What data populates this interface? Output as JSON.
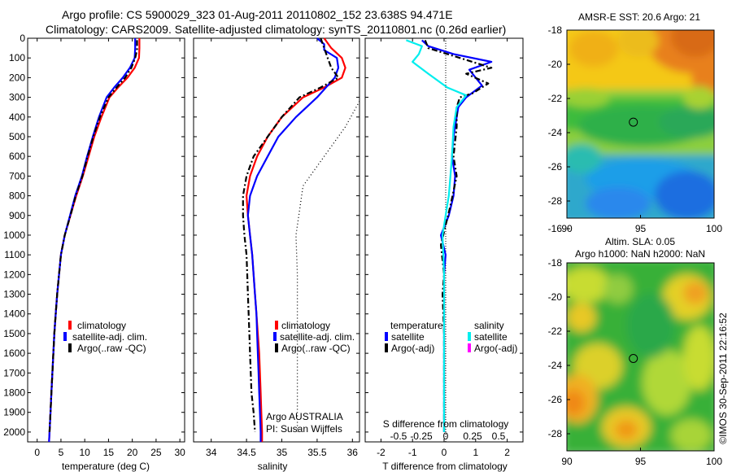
{
  "header": {
    "line1": "Argo profile: CS 5900029_323 01-Aug-2011 20110802_152 23.638S 94.471E",
    "line2": "Climatology: CARS2009. Satellite-adjusted climatology: synTS_20110801.nc (0.26d earlier)"
  },
  "chart_data": [
    {
      "type": "line",
      "xlabel": "temperature (deg C)",
      "ylabel": "",
      "xlim": [
        -2,
        31
      ],
      "ylim": [
        0,
        2050
      ],
      "x_ticks": [
        0,
        5,
        10,
        15,
        20,
        25,
        30
      ],
      "y_ticks": [
        0,
        100,
        200,
        300,
        400,
        500,
        600,
        700,
        800,
        900,
        1000,
        1100,
        1200,
        1300,
        1400,
        1500,
        1600,
        1700,
        1800,
        1900,
        2000
      ],
      "y_reversed": true,
      "legend": [
        "climatology",
        "satellite-adj. clim.",
        "Argo(..raw -QC)"
      ],
      "series": [
        {
          "name": "climatology",
          "color": "#ff0000",
          "style": "solid",
          "points": [
            [
              21.5,
              0
            ],
            [
              21.5,
              50
            ],
            [
              21.4,
              100
            ],
            [
              20.5,
              150
            ],
            [
              19,
              200
            ],
            [
              17,
              250
            ],
            [
              15.2,
              300
            ],
            [
              13.5,
              400
            ],
            [
              12,
              500
            ],
            [
              10.8,
              600
            ],
            [
              9.6,
              700
            ],
            [
              8.2,
              800
            ],
            [
              7,
              900
            ],
            [
              5.8,
              1000
            ],
            [
              5,
              1100
            ],
            [
              4.6,
              1200
            ],
            [
              4.2,
              1300
            ],
            [
              3.9,
              1400
            ],
            [
              3.6,
              1500
            ],
            [
              3.4,
              1600
            ],
            [
              3.2,
              1700
            ],
            [
              3,
              1800
            ],
            [
              2.8,
              1900
            ],
            [
              2.6,
              2000
            ],
            [
              2.5,
              2050
            ]
          ]
        },
        {
          "name": "satellite-adj. clim.",
          "color": "#0000ff",
          "style": "solid",
          "points": [
            [
              20.6,
              0
            ],
            [
              20.6,
              50
            ],
            [
              20.5,
              100
            ],
            [
              19.5,
              150
            ],
            [
              18,
              200
            ],
            [
              16.2,
              250
            ],
            [
              14.6,
              300
            ],
            [
              13,
              400
            ],
            [
              11.7,
              500
            ],
            [
              10.5,
              600
            ],
            [
              9.4,
              700
            ],
            [
              8,
              800
            ],
            [
              6.9,
              900
            ],
            [
              5.8,
              1000
            ],
            [
              5,
              1100
            ],
            [
              4.6,
              1200
            ],
            [
              4.2,
              1300
            ],
            [
              3.9,
              1400
            ],
            [
              3.6,
              1500
            ],
            [
              3.4,
              1600
            ],
            [
              3.2,
              1700
            ],
            [
              3,
              1800
            ],
            [
              2.8,
              1900
            ],
            [
              2.6,
              2000
            ],
            [
              2.5,
              2050
            ]
          ]
        },
        {
          "name": "Argo(..raw -QC)",
          "color": "#000000",
          "style": "dashdot",
          "points": [
            [
              21,
              10
            ],
            [
              21,
              60
            ],
            [
              20.6,
              100
            ],
            [
              19.8,
              150
            ],
            [
              18.5,
              200
            ],
            [
              16.7,
              250
            ],
            [
              15,
              300
            ],
            [
              13.2,
              400
            ],
            [
              11.8,
              500
            ],
            [
              10.6,
              600
            ],
            [
              9.5,
              700
            ],
            [
              8.1,
              800
            ],
            [
              7,
              900
            ],
            [
              5.8,
              1000
            ],
            [
              5,
              1100
            ],
            [
              4.6,
              1200
            ],
            [
              4.2,
              1300
            ],
            [
              3.9,
              1400
            ],
            [
              3.6,
              1500
            ],
            [
              3.4,
              1600
            ],
            [
              3.2,
              1700
            ],
            [
              3,
              1800
            ],
            [
              2.8,
              1900
            ],
            [
              2.6,
              2000
            ]
          ]
        }
      ]
    },
    {
      "type": "line",
      "xlabel": "salinity",
      "xlim": [
        33.75,
        36.1
      ],
      "ylim": [
        0,
        2050
      ],
      "x_ticks": [
        34,
        34.5,
        35,
        35.5,
        36
      ],
      "y_reversed": true,
      "legend": [
        "climatology",
        "satellite-adj. clim.",
        "Argo(..raw -QC)"
      ],
      "annotation": [
        "Argo AUSTRALIA",
        "PI: Susan Wijffels"
      ],
      "series": [
        {
          "name": "climatology",
          "color": "#ff0000",
          "style": "solid",
          "points": [
            [
              35.6,
              0
            ],
            [
              35.7,
              50
            ],
            [
              35.85,
              100
            ],
            [
              35.9,
              150
            ],
            [
              35.85,
              200
            ],
            [
              35.6,
              250
            ],
            [
              35.3,
              300
            ],
            [
              35,
              400
            ],
            [
              34.8,
              500
            ],
            [
              34.65,
              600
            ],
            [
              34.55,
              700
            ],
            [
              34.5,
              800
            ],
            [
              34.52,
              900
            ],
            [
              34.55,
              1000
            ],
            [
              34.58,
              1100
            ],
            [
              34.6,
              1200
            ],
            [
              34.62,
              1300
            ],
            [
              34.64,
              1400
            ],
            [
              34.66,
              1500
            ],
            [
              34.68,
              1600
            ],
            [
              34.69,
              1700
            ],
            [
              34.7,
              1800
            ],
            [
              34.71,
              1900
            ],
            [
              34.72,
              2000
            ],
            [
              34.72,
              2050
            ]
          ]
        },
        {
          "name": "satellite-adj. clim.",
          "color": "#0000ff",
          "style": "solid",
          "points": [
            [
              35.5,
              0
            ],
            [
              35.6,
              30
            ],
            [
              35.6,
              60
            ],
            [
              35.78,
              100
            ],
            [
              35.8,
              150
            ],
            [
              35.75,
              200
            ],
            [
              35.5,
              300
            ],
            [
              35.2,
              400
            ],
            [
              34.95,
              500
            ],
            [
              34.8,
              600
            ],
            [
              34.65,
              700
            ],
            [
              34.55,
              800
            ],
            [
              34.52,
              900
            ],
            [
              34.55,
              1000
            ],
            [
              34.58,
              1100
            ],
            [
              34.6,
              1200
            ],
            [
              34.62,
              1300
            ],
            [
              34.64,
              1400
            ],
            [
              34.65,
              1500
            ],
            [
              34.66,
              1600
            ],
            [
              34.67,
              1700
            ],
            [
              34.68,
              1800
            ],
            [
              34.69,
              1900
            ],
            [
              34.7,
              2000
            ],
            [
              34.7,
              2050
            ]
          ]
        },
        {
          "name": "Argo(..raw -QC)",
          "color": "#000000",
          "style": "dashdot",
          "points": [
            [
              35.55,
              0
            ],
            [
              35.6,
              50
            ],
            [
              35.65,
              100
            ],
            [
              35.7,
              150
            ],
            [
              35.8,
              200
            ],
            [
              35.55,
              250
            ],
            [
              35.25,
              300
            ],
            [
              35,
              400
            ],
            [
              34.8,
              500
            ],
            [
              34.6,
              600
            ],
            [
              34.5,
              700
            ],
            [
              34.45,
              800
            ],
            [
              34.45,
              900
            ],
            [
              34.47,
              1000
            ],
            [
              34.5,
              1100
            ],
            [
              34.51,
              1200
            ],
            [
              34.52,
              1300
            ],
            [
              34.53,
              1400
            ],
            [
              34.54,
              1500
            ],
            [
              34.55,
              1600
            ],
            [
              34.56,
              1700
            ],
            [
              34.57,
              1800
            ],
            [
              34.6,
              1900
            ],
            [
              34.62,
              2000
            ]
          ]
        },
        {
          "name": "",
          "color": "#000000",
          "style": "dotted",
          "points": [
            [
              36.1,
              320
            ],
            [
              35.9,
              450
            ],
            [
              35.5,
              650
            ],
            [
              35.3,
              750
            ],
            [
              35.2,
              1000
            ],
            [
              35.22,
              1200
            ],
            [
              35.22,
              1500
            ],
            [
              35.22,
              1800
            ],
            [
              35.22,
              2000
            ]
          ]
        }
      ]
    },
    {
      "type": "line",
      "xlabel": "T difference from climatology",
      "top_label": "S difference from climatology",
      "xlim": [
        -2.5,
        2.5
      ],
      "ylim": [
        0,
        2050
      ],
      "x_ticks": [
        -2,
        -1,
        0,
        1,
        2
      ],
      "top_ticks": [
        "-0.5",
        "-0.25",
        "0",
        "0.25",
        "0.5"
      ],
      "y_reversed": true,
      "legend_headers": [
        "temperature",
        "salinity"
      ],
      "legend": [
        "satellite",
        "Argo(-adj)",
        "satellite",
        "Argo(-adj)"
      ],
      "legend_colors": [
        "#0000ff",
        "#000000",
        "#00eeee",
        "#ff00ff"
      ],
      "series": [
        {
          "name": "satellite",
          "color": "#0000ff",
          "style": "solid",
          "points": [
            [
              -0.7,
              10
            ],
            [
              -0.5,
              40
            ],
            [
              0.3,
              80
            ],
            [
              1.5,
              120
            ],
            [
              0.8,
              160
            ],
            [
              1.0,
              200
            ],
            [
              1.2,
              240
            ],
            [
              0.7,
              300
            ],
            [
              0.45,
              350
            ],
            [
              0.4,
              400
            ],
            [
              0.3,
              500
            ],
            [
              0.25,
              600
            ],
            [
              0.35,
              700
            ],
            [
              0.3,
              800
            ],
            [
              0.15,
              900
            ],
            [
              -0.1,
              1000
            ],
            [
              0.05,
              1100
            ],
            [
              0,
              1200
            ],
            [
              0,
              1300
            ],
            [
              0,
              1500
            ],
            [
              0,
              1800
            ],
            [
              0,
              2000
            ]
          ]
        },
        {
          "name": "Argo(-adj)",
          "color": "#000000",
          "style": "dashdot",
          "points": [
            [
              -0.6,
              10
            ],
            [
              -0.5,
              50
            ],
            [
              0.5,
              100
            ],
            [
              1.5,
              150
            ],
            [
              0.7,
              180
            ],
            [
              1.4,
              230
            ],
            [
              0.9,
              280
            ],
            [
              0.5,
              300
            ],
            [
              0.4,
              350
            ],
            [
              0.4,
              450
            ],
            [
              0.3,
              600
            ],
            [
              0.4,
              700
            ],
            [
              0.2,
              850
            ],
            [
              0.05,
              950
            ],
            [
              -0.1,
              1050
            ],
            [
              0,
              1200
            ],
            [
              -0.05,
              1300
            ],
            [
              0,
              1500
            ],
            [
              0,
              1800
            ],
            [
              0,
              2000
            ]
          ]
        },
        {
          "name": "satellite",
          "color": "#00eeee",
          "style": "solid",
          "points": [
            [
              -1.2,
              10
            ],
            [
              -0.7,
              40
            ],
            [
              -0.8,
              80
            ],
            [
              -1,
              120
            ],
            [
              -0.5,
              180
            ],
            [
              0.1,
              250
            ],
            [
              0.7,
              290
            ],
            [
              0.4,
              350
            ],
            [
              0.3,
              450
            ],
            [
              0.25,
              600
            ],
            [
              0.2,
              700
            ],
            [
              0.15,
              800
            ],
            [
              0.05,
              900
            ],
            [
              -0.05,
              1000
            ],
            [
              0,
              1200
            ],
            [
              0,
              1600
            ],
            [
              0,
              2000
            ]
          ]
        }
      ]
    },
    {
      "type": "heatmap",
      "title": "AMSR-E SST: 20.6 Argo: 21",
      "xlim": [
        90,
        100
      ],
      "ylim": [
        -29,
        -18
      ],
      "x_ticks": [
        90,
        95,
        100
      ],
      "y_ticks": [
        -18,
        -20,
        -22,
        -24,
        -26,
        -28
      ],
      "marker": [
        94.47,
        -23.64
      ]
    },
    {
      "type": "heatmap",
      "title_lines": [
        "Altim. SLA: 0.05",
        "Argo h1000: NaN h2000: NaN"
      ],
      "xlim": [
        90,
        100
      ],
      "ylim": [
        -29,
        -18
      ],
      "x_ticks": [
        90,
        95,
        100
      ],
      "y_ticks": [
        -16,
        -18,
        -20,
        -22,
        -24,
        -26,
        -28
      ],
      "marker": [
        94.47,
        -23.64
      ]
    }
  ],
  "side_label": "©IMOS 30-Sep-2011 22:16:52"
}
